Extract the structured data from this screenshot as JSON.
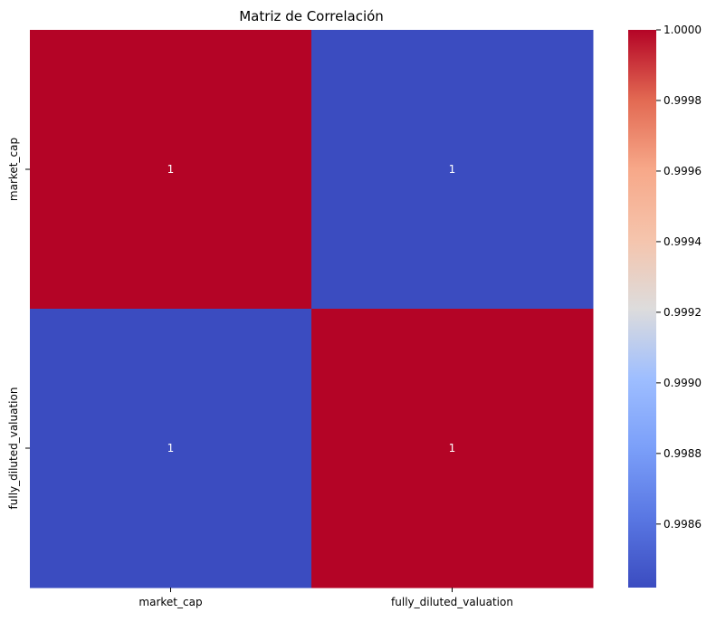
{
  "chart_data": {
    "type": "heatmap",
    "title": "Matriz de Correlación",
    "x_categories": [
      "market_cap",
      "fully_diluted_valuation"
    ],
    "y_categories": [
      "market_cap",
      "fully_diluted_valuation"
    ],
    "cell_labels": [
      [
        "1",
        "1"
      ],
      [
        "1",
        "1"
      ]
    ],
    "values": [
      [
        1.0,
        0.99842
      ],
      [
        0.99842,
        1.0
      ]
    ],
    "colormap": "coolwarm",
    "colorbar": {
      "min": 0.99842,
      "max": 1.0,
      "ticks": [
        0.9986,
        0.9988,
        0.999,
        0.9992,
        0.9994,
        0.9996,
        0.9998,
        1.0
      ],
      "tick_labels": [
        "0.9986",
        "0.9988",
        "0.9990",
        "0.9992",
        "0.9994",
        "0.9996",
        "0.9998",
        "1.0000"
      ]
    },
    "grid": false
  }
}
